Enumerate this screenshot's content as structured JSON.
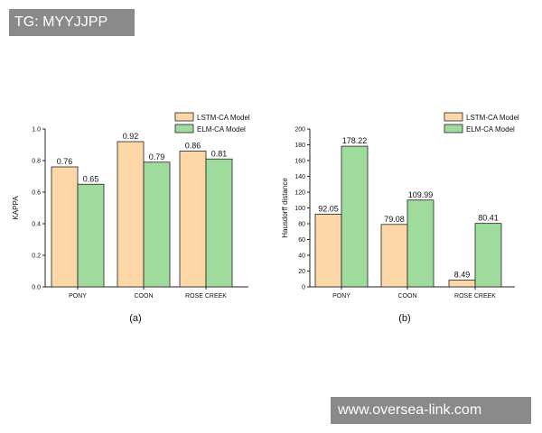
{
  "watermark_top": "TG: MYYJJPP",
  "watermark_bottom": "www.oversea-link.com",
  "colors": {
    "lstm": "#fdd7a8",
    "elm": "#9edb9c",
    "stroke": "#222222"
  },
  "chart_data": [
    {
      "type": "bar",
      "panel_label": "(a)",
      "ylabel": "KAPPA",
      "ylim": [
        0,
        1.0
      ],
      "yticks": [
        "0.0",
        "0.2",
        "0.4",
        "0.6",
        "0.8",
        "1.0"
      ],
      "categories": [
        "PONY",
        "COON",
        "ROSE CREEK"
      ],
      "series": [
        {
          "name": "LSTM-CA Model",
          "values": [
            0.76,
            0.92,
            0.86
          ],
          "labels": [
            "0.76",
            "0.92",
            "0.86"
          ]
        },
        {
          "name": "ELM-CA Model",
          "values": [
            0.65,
            0.79,
            0.81
          ],
          "labels": [
            "0.65",
            "0.79",
            "0.81"
          ]
        }
      ],
      "legend": "top-right",
      "grid": false
    },
    {
      "type": "bar",
      "panel_label": "(b)",
      "ylabel": "Hausdorff distance",
      "ylim": [
        0,
        200
      ],
      "yticks": [
        "0",
        "20",
        "40",
        "60",
        "80",
        "100",
        "120",
        "140",
        "160",
        "180",
        "200"
      ],
      "categories": [
        "PONY",
        "COON",
        "ROSE CREEK"
      ],
      "series": [
        {
          "name": "LSTM-CA Model",
          "values": [
            92.05,
            79.08,
            8.49
          ],
          "labels": [
            "92.05",
            "79.08",
            "8.49"
          ]
        },
        {
          "name": "ELM-CA Model",
          "values": [
            178.22,
            109.99,
            80.41
          ],
          "labels": [
            "178.22",
            "109.99",
            "80.41"
          ]
        }
      ],
      "legend": "top-right",
      "grid": false
    }
  ]
}
